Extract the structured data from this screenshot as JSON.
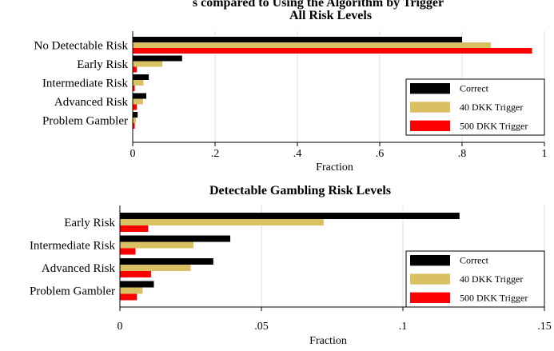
{
  "page": {
    "truncated_heading": "s compared to Using the Algorithm by Trigger"
  },
  "colors": {
    "correct": "#000000",
    "trigger40": "#d9c063",
    "trigger500": "#ff0000"
  },
  "chart_data": [
    {
      "type": "bar",
      "orientation": "horizontal",
      "title": "All Risk Levels",
      "xlabel": "Fraction",
      "ylabel": "",
      "xlim": [
        0,
        1
      ],
      "xticks": [
        0,
        0.2,
        0.4,
        0.6,
        0.8,
        1
      ],
      "xtick_labels": [
        "0",
        ".2",
        ".4",
        ".6",
        ".8",
        "1"
      ],
      "grid": true,
      "legend_position": "bottom-right",
      "categories": [
        "No Detectable Risk",
        "Early Risk",
        "Intermediate Risk",
        "Advanced Risk",
        "Problem Gambler"
      ],
      "series": [
        {
          "name": "Correct",
          "values": [
            0.8,
            0.12,
            0.039,
            0.033,
            0.012
          ]
        },
        {
          "name": "40 DKK Trigger",
          "values": [
            0.87,
            0.072,
            0.026,
            0.025,
            0.008
          ]
        },
        {
          "name": "500 DKK Trigger",
          "values": [
            0.97,
            0.01,
            0.005,
            0.01,
            0.005
          ]
        }
      ]
    },
    {
      "type": "bar",
      "orientation": "horizontal",
      "title": "Detectable Gambling Risk Levels",
      "xlabel": "Fraction",
      "ylabel": "",
      "xlim": [
        0,
        0.15
      ],
      "xticks": [
        0,
        0.05,
        0.1,
        0.15
      ],
      "xtick_labels": [
        "0",
        ".05",
        ".1",
        ".15"
      ],
      "grid": true,
      "legend_position": "bottom-right",
      "categories": [
        "Early Risk",
        "Intermediate Risk",
        "Advanced Risk",
        "Problem Gambler"
      ],
      "series": [
        {
          "name": "Correct",
          "values": [
            0.12,
            0.039,
            0.033,
            0.012
          ]
        },
        {
          "name": "40 DKK Trigger",
          "values": [
            0.072,
            0.026,
            0.025,
            0.008
          ]
        },
        {
          "name": "500 DKK Trigger",
          "values": [
            0.01,
            0.0055,
            0.011,
            0.006
          ]
        }
      ]
    }
  ]
}
